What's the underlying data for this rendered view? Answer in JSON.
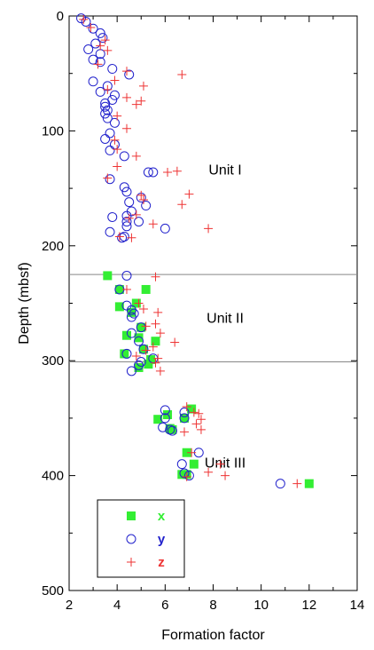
{
  "chart_data": {
    "type": "scatter",
    "title": "",
    "xlabel": "Formation factor",
    "ylabel": "Depth (mbsf)",
    "xlim": [
      2,
      14
    ],
    "ylim": [
      0,
      500
    ],
    "y_inverted": true,
    "x_ticks": [
      "2",
      "4",
      "6",
      "8",
      "10",
      "12",
      "14"
    ],
    "y_ticks": [
      "0",
      "100",
      "200",
      "300",
      "400",
      "500"
    ],
    "x_tick_values": [
      2,
      4,
      6,
      8,
      10,
      12,
      14
    ],
    "y_tick_values": [
      0,
      100,
      200,
      300,
      400,
      500
    ],
    "grid": false,
    "legend_position": "bottom-left",
    "boundaries": [
      225,
      301
    ],
    "units": [
      {
        "label": "Unit I",
        "x": 8.5,
        "y": 138
      },
      {
        "label": "Unit II",
        "x": 8.5,
        "y": 267
      },
      {
        "label": "Unit III",
        "x": 8.5,
        "y": 393
      }
    ],
    "series": [
      {
        "name": "x",
        "marker": "square",
        "color": "#33ee33",
        "points": [
          [
            3.6,
            226
          ],
          [
            4.1,
            238
          ],
          [
            5.2,
            238
          ],
          [
            4.1,
            253
          ],
          [
            4.8,
            250
          ],
          [
            4.6,
            258
          ],
          [
            4.4,
            278
          ],
          [
            5.0,
            271
          ],
          [
            4.9,
            280
          ],
          [
            5.6,
            283
          ],
          [
            4.3,
            294
          ],
          [
            5.1,
            290
          ],
          [
            5.4,
            299
          ],
          [
            4.9,
            306
          ],
          [
            5.3,
            303
          ],
          [
            5.7,
            351
          ],
          [
            6.1,
            347
          ],
          [
            6.8,
            350
          ],
          [
            6.2,
            359
          ],
          [
            7.1,
            342
          ],
          [
            6.3,
            360
          ],
          [
            6.9,
            380
          ],
          [
            7.2,
            390
          ],
          [
            6.7,
            399
          ],
          [
            6.9,
            399
          ],
          [
            12.0,
            407
          ]
        ]
      },
      {
        "name": "y",
        "marker": "circle",
        "color": "#2222cc",
        "points": [
          [
            2.5,
            2
          ],
          [
            2.7,
            5
          ],
          [
            3.0,
            11
          ],
          [
            3.3,
            15
          ],
          [
            3.4,
            19
          ],
          [
            3.1,
            24
          ],
          [
            2.8,
            29
          ],
          [
            3.3,
            33
          ],
          [
            3.0,
            38
          ],
          [
            3.3,
            40
          ],
          [
            3.8,
            46
          ],
          [
            4.5,
            51
          ],
          [
            3.0,
            57
          ],
          [
            3.6,
            61
          ],
          [
            3.3,
            66
          ],
          [
            3.9,
            69
          ],
          [
            3.8,
            73
          ],
          [
            3.5,
            76
          ],
          [
            3.5,
            79
          ],
          [
            3.6,
            82
          ],
          [
            3.5,
            85
          ],
          [
            3.6,
            89
          ],
          [
            3.9,
            93
          ],
          [
            3.7,
            102
          ],
          [
            3.5,
            107
          ],
          [
            3.9,
            112
          ],
          [
            3.7,
            117
          ],
          [
            4.3,
            122
          ],
          [
            5.3,
            136
          ],
          [
            5.5,
            136
          ],
          [
            3.7,
            142
          ],
          [
            4.3,
            149
          ],
          [
            4.4,
            153
          ],
          [
            5.0,
            158
          ],
          [
            4.5,
            162
          ],
          [
            5.2,
            165
          ],
          [
            4.6,
            170
          ],
          [
            4.4,
            174
          ],
          [
            3.8,
            175
          ],
          [
            4.4,
            179
          ],
          [
            4.9,
            179
          ],
          [
            4.4,
            183
          ],
          [
            6.0,
            185
          ],
          [
            3.7,
            188
          ],
          [
            4.2,
            193
          ],
          [
            4.3,
            192
          ],
          [
            4.4,
            226
          ],
          [
            4.1,
            238
          ],
          [
            4.4,
            252
          ],
          [
            4.6,
            256
          ],
          [
            4.7,
            259
          ],
          [
            4.6,
            262
          ],
          [
            4.6,
            276
          ],
          [
            5.0,
            271
          ],
          [
            4.9,
            283
          ],
          [
            4.4,
            294
          ],
          [
            5.1,
            290
          ],
          [
            5.5,
            298
          ],
          [
            4.6,
            309
          ],
          [
            4.9,
            304
          ],
          [
            5.0,
            301
          ],
          [
            6.0,
            343
          ],
          [
            6.0,
            350
          ],
          [
            6.8,
            345
          ],
          [
            6.8,
            350
          ],
          [
            5.9,
            358
          ],
          [
            6.3,
            361
          ],
          [
            6.2,
            360
          ],
          [
            7.4,
            380
          ],
          [
            6.7,
            390
          ],
          [
            7.0,
            400
          ],
          [
            6.8,
            398
          ],
          [
            10.8,
            407
          ]
        ]
      },
      {
        "name": "z",
        "marker": "plus",
        "color": "#ee3333",
        "points": [
          [
            2.6,
            3
          ],
          [
            2.9,
            10
          ],
          [
            3.5,
            21
          ],
          [
            3.3,
            26
          ],
          [
            3.6,
            30
          ],
          [
            3.2,
            42
          ],
          [
            4.4,
            48
          ],
          [
            6.7,
            51
          ],
          [
            3.9,
            56
          ],
          [
            5.1,
            61
          ],
          [
            3.6,
            64
          ],
          [
            4.4,
            71
          ],
          [
            4.8,
            77
          ],
          [
            5.0,
            74
          ],
          [
            4.0,
            87
          ],
          [
            4.4,
            98
          ],
          [
            3.9,
            108
          ],
          [
            4.0,
            116
          ],
          [
            4.8,
            122
          ],
          [
            4.0,
            131
          ],
          [
            6.1,
            136
          ],
          [
            6.5,
            135
          ],
          [
            3.6,
            141
          ],
          [
            5.0,
            156
          ],
          [
            7.0,
            155
          ],
          [
            5.1,
            160
          ],
          [
            6.7,
            164
          ],
          [
            5.5,
            181
          ],
          [
            4.5,
            176
          ],
          [
            4.8,
            173
          ],
          [
            7.8,
            185
          ],
          [
            4.6,
            193
          ],
          [
            4.1,
            192
          ],
          [
            5.6,
            227
          ],
          [
            4.4,
            238
          ],
          [
            4.9,
            250
          ],
          [
            5.1,
            255
          ],
          [
            5.7,
            258
          ],
          [
            5.6,
            268
          ],
          [
            5.2,
            270
          ],
          [
            5.8,
            276
          ],
          [
            6.4,
            284
          ],
          [
            5.5,
            288
          ],
          [
            5.2,
            291
          ],
          [
            4.8,
            296
          ],
          [
            5.7,
            298
          ],
          [
            5.6,
            302
          ],
          [
            5.8,
            309
          ],
          [
            6.9,
            340
          ],
          [
            7.2,
            345
          ],
          [
            7.4,
            346
          ],
          [
            7.5,
            351
          ],
          [
            7.3,
            355
          ],
          [
            6.8,
            362
          ],
          [
            7.5,
            360
          ],
          [
            7.1,
            380
          ],
          [
            8.3,
            390
          ],
          [
            7.8,
            397
          ],
          [
            8.5,
            400
          ],
          [
            6.9,
            401
          ],
          [
            11.5,
            407
          ]
        ]
      }
    ]
  }
}
